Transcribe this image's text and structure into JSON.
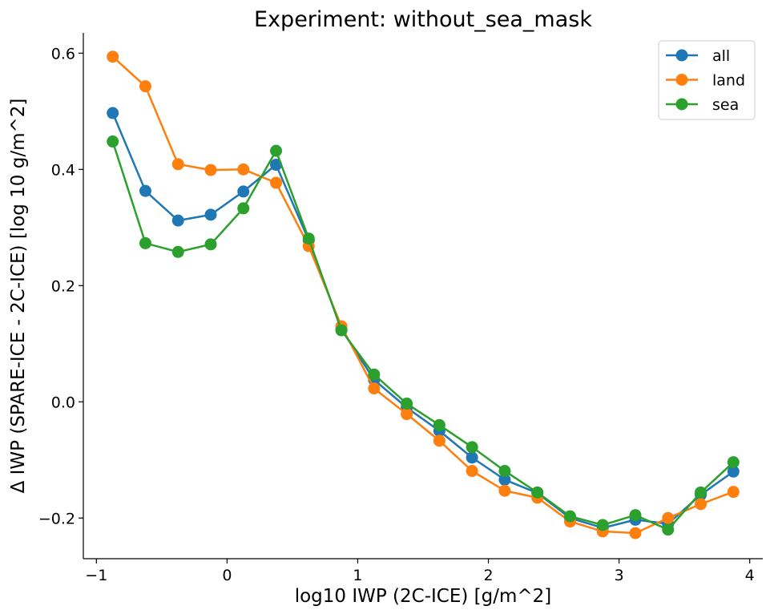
{
  "chart_data": {
    "type": "line",
    "title": "Experiment: without_sea_mask",
    "xlabel": "log10 IWP (2C-ICE) [g/m^2]",
    "ylabel": "Δ IWP (SPARE-ICE - 2C-ICE) [log 10 g/m^2]",
    "xlim": [
      -1.1,
      4.1
    ],
    "ylim": [
      -0.27,
      0.635
    ],
    "xticks": [
      -1,
      0,
      1,
      2,
      3,
      4
    ],
    "xtick_labels": [
      "−1",
      "0",
      "1",
      "2",
      "3",
      "4"
    ],
    "yticks": [
      -0.2,
      0.0,
      0.2,
      0.4,
      0.6
    ],
    "ytick_labels": [
      "−0.2",
      "0.0",
      "0.2",
      "0.4",
      "0.6"
    ],
    "grid": false,
    "legend_position": "top-right",
    "x": [
      -0.875,
      -0.625,
      -0.375,
      -0.125,
      0.125,
      0.375,
      0.625,
      0.875,
      1.125,
      1.375,
      1.625,
      1.875,
      2.125,
      2.375,
      2.625,
      2.875,
      3.125,
      3.375,
      3.625,
      3.875
    ],
    "series": [
      {
        "name": "all",
        "color": "#1f77b4",
        "values": [
          0.497,
          0.363,
          0.312,
          0.322,
          0.362,
          0.408,
          0.278,
          0.125,
          0.038,
          -0.01,
          -0.05,
          -0.096,
          -0.134,
          -0.157,
          -0.2,
          -0.217,
          -0.203,
          -0.21,
          -0.16,
          -0.12
        ]
      },
      {
        "name": "land",
        "color": "#ff7f0e",
        "values": [
          0.594,
          0.543,
          0.409,
          0.399,
          0.4,
          0.377,
          0.268,
          0.13,
          0.023,
          -0.021,
          -0.067,
          -0.119,
          -0.153,
          -0.165,
          -0.206,
          -0.223,
          -0.226,
          -0.2,
          -0.176,
          -0.155
        ]
      },
      {
        "name": "sea",
        "color": "#2ca02c",
        "values": [
          0.448,
          0.273,
          0.258,
          0.271,
          0.333,
          0.432,
          0.281,
          0.123,
          0.047,
          -0.003,
          -0.04,
          -0.078,
          -0.119,
          -0.156,
          -0.197,
          -0.212,
          -0.195,
          -0.22,
          -0.156,
          -0.104
        ]
      }
    ]
  }
}
